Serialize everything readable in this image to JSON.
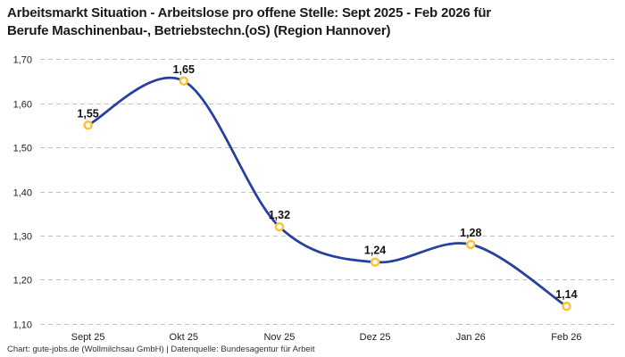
{
  "header": {
    "title_line1": "Arbeitsmarkt Situation - Arbeitslose pro offene Stelle: Sept 2025 - Feb 2026 für",
    "title_line2": "Berufe Maschinenbau-, Betriebstechn.(oS) (Region Hannover)"
  },
  "footer": {
    "credit": "Chart: gute-jobs.de (Wollmilchsau GmbH) | Datenquelle: Bundesagentur für Arbeit"
  },
  "chart_data": {
    "type": "line",
    "title": "Arbeitsmarkt Situation - Arbeitslose pro offene Stelle: Sept 2025 - Feb 2026 für Berufe Maschinenbau-, Betriebstechn.(oS) (Region Hannover)",
    "categories": [
      "Sept 25",
      "Okt 25",
      "Nov 25",
      "Dez 25",
      "Jan 26",
      "Feb 26"
    ],
    "values": [
      1.55,
      1.65,
      1.32,
      1.24,
      1.28,
      1.14
    ],
    "point_labels": [
      "1,55",
      "1,65",
      "1,32",
      "1,24",
      "1,28",
      "1,14"
    ],
    "xlabel": "",
    "ylabel": "",
    "ylim": [
      1.1,
      1.7
    ],
    "ytick_labels": [
      "1,10",
      "1,20",
      "1,30",
      "1,40",
      "1,50",
      "1,60",
      "1,70"
    ],
    "grid": "horizontal-dashed",
    "legend": "none",
    "smooth": true,
    "colors": {
      "line": "#27409F",
      "marker_ring": "#FFC233",
      "marker_fill": "#FFFFFF",
      "gridline": "#C2C2C2",
      "tick_text": "#222222",
      "point_label_text": "#111111"
    }
  }
}
